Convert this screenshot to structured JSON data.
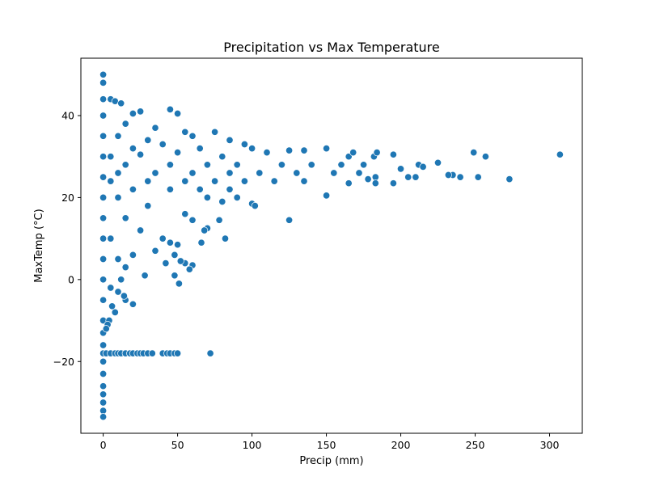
{
  "chart_data": {
    "type": "scatter",
    "title": "Precipitation vs Max Temperature",
    "xlabel": "Precip (mm)",
    "ylabel": "MaxTemp (°C)",
    "xlim": [
      -15,
      322
    ],
    "ylim": [
      -37.5,
      54
    ],
    "xticks": [
      0,
      50,
      100,
      150,
      200,
      250,
      300
    ],
    "yticks": [
      -20,
      0,
      20,
      40
    ],
    "grid": false,
    "legend": "none",
    "marker_color": "#1f77b4",
    "marker_edge_color": "#ffffff",
    "points": [
      [
        0,
        50.0
      ],
      [
        0,
        48.0
      ],
      [
        0,
        44.0
      ],
      [
        0,
        40.0
      ],
      [
        0,
        35.0
      ],
      [
        0,
        30.0
      ],
      [
        0,
        25.0
      ],
      [
        0,
        20.0
      ],
      [
        0,
        15.0
      ],
      [
        0,
        10.0
      ],
      [
        0,
        5.0
      ],
      [
        0,
        0.0
      ],
      [
        0,
        -5.0
      ],
      [
        0,
        -10.0
      ],
      [
        0,
        -13.0
      ],
      [
        0,
        -16.0
      ],
      [
        0,
        -18.0
      ],
      [
        0,
        -20.0
      ],
      [
        0,
        -23.0
      ],
      [
        0,
        -26.0
      ],
      [
        0,
        -28.0
      ],
      [
        0,
        -30.0
      ],
      [
        0,
        -32.0
      ],
      [
        0,
        -33.5
      ],
      [
        5,
        44.0
      ],
      [
        8,
        43.5
      ],
      [
        12,
        43.0
      ],
      [
        20,
        40.5
      ],
      [
        25,
        41.0
      ],
      [
        45,
        41.5
      ],
      [
        50,
        40.5
      ],
      [
        15,
        38.0
      ],
      [
        35,
        37.0
      ],
      [
        55,
        36.0
      ],
      [
        10,
        35.0
      ],
      [
        30,
        34.0
      ],
      [
        60,
        35.0
      ],
      [
        75,
        36.0
      ],
      [
        85,
        34.0
      ],
      [
        20,
        32.0
      ],
      [
        40,
        33.0
      ],
      [
        65,
        32.0
      ],
      [
        95,
        33.0
      ],
      [
        100,
        32.0
      ],
      [
        5,
        30.0
      ],
      [
        25,
        30.5
      ],
      [
        50,
        31.0
      ],
      [
        80,
        30.0
      ],
      [
        110,
        31.0
      ],
      [
        125,
        31.5
      ],
      [
        135,
        31.5
      ],
      [
        150,
        32.0
      ],
      [
        165,
        30.0
      ],
      [
        168,
        31.0
      ],
      [
        182,
        30.0
      ],
      [
        184,
        31.0
      ],
      [
        195,
        30.5
      ],
      [
        249,
        31.0
      ],
      [
        257,
        30.0
      ],
      [
        307,
        30.5
      ],
      [
        15,
        28.0
      ],
      [
        45,
        28.0
      ],
      [
        70,
        28.0
      ],
      [
        90,
        28.0
      ],
      [
        120,
        28.0
      ],
      [
        140,
        28.0
      ],
      [
        160,
        28.0
      ],
      [
        175,
        28.0
      ],
      [
        225,
        28.5
      ],
      [
        212,
        28.0
      ],
      [
        10,
        26.0
      ],
      [
        35,
        26.0
      ],
      [
        60,
        26.0
      ],
      [
        85,
        26.0
      ],
      [
        105,
        26.0
      ],
      [
        130,
        26.0
      ],
      [
        155,
        26.0
      ],
      [
        172,
        26.0
      ],
      [
        200,
        27.0
      ],
      [
        205,
        25.0
      ],
      [
        210,
        25.0
      ],
      [
        215,
        27.5
      ],
      [
        235,
        25.5
      ],
      [
        240,
        25.0
      ],
      [
        252,
        25.0
      ],
      [
        273,
        24.5
      ],
      [
        232,
        25.5
      ],
      [
        183,
        25.0
      ],
      [
        178,
        24.5
      ],
      [
        5,
        24.0
      ],
      [
        30,
        24.0
      ],
      [
        55,
        24.0
      ],
      [
        75,
        24.0
      ],
      [
        95,
        24.0
      ],
      [
        115,
        24.0
      ],
      [
        135,
        24.0
      ],
      [
        165,
        23.5
      ],
      [
        183,
        23.5
      ],
      [
        195,
        23.5
      ],
      [
        20,
        22.0
      ],
      [
        45,
        22.0
      ],
      [
        65,
        22.0
      ],
      [
        85,
        22.0
      ],
      [
        100,
        18.5
      ],
      [
        102,
        18.0
      ],
      [
        150,
        20.5
      ],
      [
        70,
        20.0
      ],
      [
        80,
        19.0
      ],
      [
        90,
        20.0
      ],
      [
        10,
        20.0
      ],
      [
        30,
        18.0
      ],
      [
        55,
        16.0
      ],
      [
        60,
        14.5
      ],
      [
        78,
        14.5
      ],
      [
        125,
        14.5
      ],
      [
        70,
        12.5
      ],
      [
        68,
        12.0
      ],
      [
        82,
        10.0
      ],
      [
        66,
        9.0
      ],
      [
        15,
        15.0
      ],
      [
        25,
        12.0
      ],
      [
        40,
        10.0
      ],
      [
        45,
        9.0
      ],
      [
        50,
        8.5
      ],
      [
        35,
        7.0
      ],
      [
        20,
        6.0
      ],
      [
        48,
        6.0
      ],
      [
        55,
        4.0
      ],
      [
        52,
        4.5
      ],
      [
        5,
        10.0
      ],
      [
        10,
        5.0
      ],
      [
        15,
        3.0
      ],
      [
        28,
        1.0
      ],
      [
        42,
        4.0
      ],
      [
        60,
        3.5
      ],
      [
        58,
        2.5
      ],
      [
        48,
        1.0
      ],
      [
        51,
        -1.0
      ],
      [
        12,
        0.0
      ],
      [
        5,
        -2.0
      ],
      [
        10,
        -3.0
      ],
      [
        15,
        -5.0
      ],
      [
        20,
        -6.0
      ],
      [
        8,
        -8.0
      ],
      [
        4,
        -10.0
      ],
      [
        3,
        -11.0
      ],
      [
        2,
        -12.0
      ],
      [
        6,
        -6.5
      ],
      [
        14,
        -4.0
      ],
      [
        2,
        -18.0
      ],
      [
        5,
        -18.0
      ],
      [
        8,
        -18.0
      ],
      [
        10,
        -18.0
      ],
      [
        12,
        -18.0
      ],
      [
        15,
        -18.0
      ],
      [
        18,
        -18.0
      ],
      [
        20,
        -18.0
      ],
      [
        23,
        -18.0
      ],
      [
        25,
        -18.0
      ],
      [
        27,
        -18.0
      ],
      [
        30,
        -18.0
      ],
      [
        33,
        -18.0
      ],
      [
        40,
        -18.0
      ],
      [
        43,
        -18.0
      ],
      [
        45,
        -18.0
      ],
      [
        48,
        -18.0
      ],
      [
        50,
        -18.0
      ],
      [
        72,
        -18.0
      ]
    ]
  }
}
